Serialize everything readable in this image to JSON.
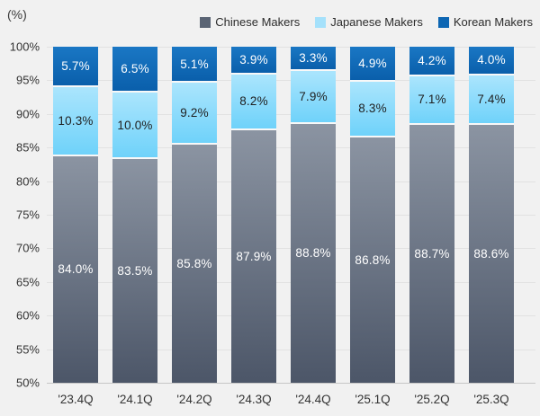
{
  "unit_label": "(%)",
  "colors": {
    "background": "#f1f1f1",
    "gridline": "#e2e2e2",
    "axis_line": "#c6c6c6",
    "tick_text": "#333333",
    "legend_text": "#2b2b2b",
    "segment_divider": "#f8f8f8"
  },
  "chart_data": {
    "type": "bar",
    "stacked": true,
    "title": "",
    "ylabel": "(%)",
    "ylim": [
      50,
      100
    ],
    "ytick_step": 5,
    "yticks": [
      "100%",
      "95%",
      "90%",
      "85%",
      "80%",
      "75%",
      "70%",
      "65%",
      "60%",
      "55%",
      "50%"
    ],
    "grid": true,
    "legend_position": "top-right",
    "value_suffix": "%",
    "categories": [
      "'23.4Q",
      "'24.1Q",
      "'24.2Q",
      "'24.3Q",
      "'24.4Q",
      "'25.1Q",
      "'25.2Q",
      "'25.3Q"
    ],
    "series": [
      {
        "name": "Chinese Makers",
        "values": [
          84.0,
          83.5,
          85.8,
          87.9,
          88.8,
          86.8,
          88.7,
          88.6
        ],
        "legend_color": "#5a6474",
        "gradient_top": "#8b94a2",
        "gradient_bottom": "#4c5668",
        "label_color": "#ffffff"
      },
      {
        "name": "Japanese Makers",
        "values": [
          10.3,
          10.0,
          9.2,
          8.2,
          7.9,
          8.3,
          7.1,
          7.4
        ],
        "legend_color": "#a5e1fb",
        "gradient_top": "#abe5fd",
        "gradient_bottom": "#6fd2fa",
        "label_color": "#1f1f1f"
      },
      {
        "name": "Korean Makers",
        "values": [
          5.7,
          6.5,
          5.1,
          3.9,
          3.3,
          4.9,
          4.2,
          4.0
        ],
        "legend_color": "#0d66b3",
        "gradient_top": "#1a77c4",
        "gradient_bottom": "#0a5fab",
        "label_color": "#ffffff"
      }
    ]
  }
}
